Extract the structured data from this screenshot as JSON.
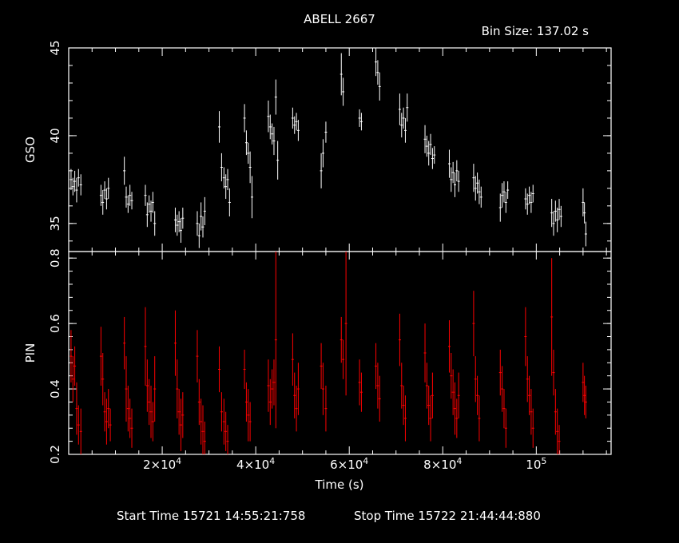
{
  "title": "ABELL 2667",
  "bin_size": "Bin Size: 137.02 s",
  "x_axis_label": "Time (s)",
  "start_time": "Start Time 15721 14:55:21:758",
  "stop_time": "Stop Time 15722 21:44:44:880",
  "colors": {
    "background": "#000000",
    "axes": "#ffffff",
    "gso_series": "#ffffff",
    "pin_series": "#ff0000"
  },
  "chart_data": [
    {
      "type": "scatter",
      "name": "gso_panel",
      "ylabel": "GSO",
      "xlim": [
        0,
        116000
      ],
      "ylim": [
        33.4,
        45
      ],
      "y_ticks": [
        35,
        40,
        45
      ],
      "x_tick_values": [
        20000,
        40000,
        60000,
        80000,
        100000
      ],
      "tick_labels": [
        "35",
        "40",
        "45"
      ],
      "points": [
        [
          500,
          37.5,
          0.6
        ],
        [
          900,
          37.1,
          0.5
        ],
        [
          1300,
          37.4,
          0.6
        ],
        [
          1700,
          36.9,
          0.7
        ],
        [
          2100,
          37.6,
          0.5
        ],
        [
          2600,
          37.2,
          0.6
        ],
        [
          6900,
          36.6,
          0.6
        ],
        [
          7300,
          36.2,
          0.7
        ],
        [
          7700,
          36.9,
          0.5
        ],
        [
          8100,
          36.4,
          0.6
        ],
        [
          8500,
          37.0,
          0.6
        ],
        [
          11900,
          38.0,
          0.8
        ],
        [
          12300,
          36.5,
          0.6
        ],
        [
          12700,
          36.1,
          0.5
        ],
        [
          13100,
          36.6,
          0.6
        ],
        [
          13500,
          36.3,
          0.5
        ],
        [
          16400,
          36.6,
          0.6
        ],
        [
          16800,
          35.5,
          0.7
        ],
        [
          17200,
          36.1,
          0.5
        ],
        [
          17600,
          35.7,
          0.6
        ],
        [
          18000,
          36.2,
          0.6
        ],
        [
          18400,
          35.0,
          0.7
        ],
        [
          22800,
          35.2,
          0.7
        ],
        [
          23200,
          34.9,
          0.6
        ],
        [
          23600,
          35.1,
          0.6
        ],
        [
          24000,
          34.6,
          0.7
        ],
        [
          24400,
          35.3,
          0.6
        ],
        [
          27500,
          35.0,
          0.7
        ],
        [
          27900,
          34.3,
          0.7
        ],
        [
          28300,
          35.4,
          0.8
        ],
        [
          28700,
          34.8,
          0.6
        ],
        [
          29100,
          35.7,
          0.8
        ],
        [
          32200,
          40.5,
          0.9
        ],
        [
          32700,
          38.2,
          0.8
        ],
        [
          33200,
          37.6,
          0.6
        ],
        [
          33600,
          37.1,
          0.7
        ],
        [
          34000,
          37.5,
          0.6
        ],
        [
          34400,
          36.2,
          0.8
        ],
        [
          37600,
          41.0,
          0.8
        ],
        [
          38000,
          39.6,
          0.7
        ],
        [
          38400,
          39.0,
          0.6
        ],
        [
          38800,
          38.2,
          0.9
        ],
        [
          39200,
          36.5,
          1.2
        ],
        [
          42700,
          41.1,
          0.9
        ],
        [
          43100,
          40.5,
          0.7
        ],
        [
          43500,
          40.1,
          0.6
        ],
        [
          43900,
          39.7,
          0.8
        ],
        [
          44300,
          42.2,
          1.0
        ],
        [
          44700,
          38.6,
          1.1
        ],
        [
          47900,
          41.0,
          0.6
        ],
        [
          48300,
          40.6,
          0.5
        ],
        [
          48700,
          40.8,
          0.5
        ],
        [
          49100,
          40.3,
          0.6
        ],
        [
          54000,
          38.0,
          1.0
        ],
        [
          54400,
          39.0,
          0.8
        ],
        [
          55000,
          40.2,
          0.6
        ],
        [
          58300,
          43.5,
          1.2
        ],
        [
          58700,
          42.5,
          0.8
        ],
        [
          62200,
          41.0,
          0.5
        ],
        [
          62600,
          40.8,
          0.5
        ],
        [
          65700,
          44.2,
          0.8
        ],
        [
          66100,
          43.6,
          0.7
        ],
        [
          66500,
          42.8,
          0.8
        ],
        [
          70800,
          41.5,
          0.9
        ],
        [
          71200,
          40.6,
          0.7
        ],
        [
          71600,
          41.0,
          0.6
        ],
        [
          72000,
          40.3,
          0.7
        ],
        [
          72400,
          41.6,
          0.8
        ],
        [
          76200,
          39.8,
          0.8
        ],
        [
          76600,
          39.4,
          0.6
        ],
        [
          77000,
          39.0,
          0.7
        ],
        [
          77400,
          39.5,
          0.6
        ],
        [
          77800,
          38.7,
          0.6
        ],
        [
          78200,
          38.9,
          0.5
        ],
        [
          81400,
          38.4,
          0.8
        ],
        [
          81800,
          37.5,
          0.7
        ],
        [
          82200,
          37.9,
          0.6
        ],
        [
          82600,
          37.2,
          0.7
        ],
        [
          83000,
          38.0,
          0.6
        ],
        [
          83400,
          37.4,
          0.6
        ],
        [
          86600,
          37.6,
          0.8
        ],
        [
          87000,
          37.0,
          0.7
        ],
        [
          87400,
          37.3,
          0.6
        ],
        [
          87800,
          36.8,
          0.7
        ],
        [
          88200,
          36.5,
          0.6
        ],
        [
          92300,
          35.9,
          0.8
        ],
        [
          92700,
          36.6,
          0.7
        ],
        [
          93100,
          36.8,
          0.6
        ],
        [
          93500,
          36.2,
          0.6
        ],
        [
          93900,
          36.9,
          0.5
        ],
        [
          97700,
          36.4,
          0.6
        ],
        [
          98100,
          36.1,
          0.6
        ],
        [
          98500,
          36.6,
          0.5
        ],
        [
          98900,
          36.2,
          0.6
        ],
        [
          99300,
          36.7,
          0.5
        ],
        [
          103300,
          35.6,
          0.8
        ],
        [
          103700,
          35.0,
          0.7
        ],
        [
          104100,
          35.7,
          0.6
        ],
        [
          104500,
          35.2,
          0.7
        ],
        [
          104900,
          35.8,
          0.6
        ],
        [
          105300,
          35.4,
          0.6
        ],
        [
          110000,
          36.2,
          0.8
        ],
        [
          110300,
          35.6,
          0.6
        ],
        [
          110600,
          34.4,
          0.7
        ]
      ]
    },
    {
      "type": "scatter",
      "name": "pin_panel",
      "ylabel": "PIN",
      "xlim": [
        0,
        116000
      ],
      "ylim": [
        0.2,
        0.82
      ],
      "y_ticks": [
        0.2,
        0.4,
        0.6,
        0.8
      ],
      "x_tick_values": [
        20000,
        40000,
        60000,
        80000,
        100000
      ],
      "tick_labels": [
        "0.2",
        "0.4",
        "0.6",
        "0.8"
      ],
      "x_tick_labels": [
        {
          "mant": "2×10",
          "exp": "4"
        },
        {
          "mant": "4×10",
          "exp": "4"
        },
        {
          "mant": "6×10",
          "exp": "4"
        },
        {
          "mant": "8×10",
          "exp": "4"
        },
        {
          "mant": "10",
          "exp": "5"
        }
      ],
      "points": [
        [
          500,
          0.5,
          0.08
        ],
        [
          900,
          0.43,
          0.07
        ],
        [
          1300,
          0.47,
          0.06
        ],
        [
          1700,
          0.34,
          0.08
        ],
        [
          2100,
          0.29,
          0.06
        ],
        [
          2600,
          0.27,
          0.07
        ],
        [
          6900,
          0.5,
          0.09
        ],
        [
          7300,
          0.43,
          0.08
        ],
        [
          7700,
          0.33,
          0.06
        ],
        [
          8100,
          0.3,
          0.07
        ],
        [
          8500,
          0.34,
          0.06
        ],
        [
          8900,
          0.29,
          0.05
        ],
        [
          11900,
          0.54,
          0.08
        ],
        [
          12300,
          0.4,
          0.1
        ],
        [
          12700,
          0.34,
          0.07
        ],
        [
          13100,
          0.31,
          0.06
        ],
        [
          13500,
          0.28,
          0.06
        ],
        [
          16400,
          0.53,
          0.12
        ],
        [
          16800,
          0.41,
          0.08
        ],
        [
          17200,
          0.36,
          0.07
        ],
        [
          17600,
          0.33,
          0.08
        ],
        [
          18000,
          0.3,
          0.06
        ],
        [
          18400,
          0.4,
          0.1
        ],
        [
          22800,
          0.54,
          0.1
        ],
        [
          23200,
          0.4,
          0.09
        ],
        [
          23600,
          0.33,
          0.07
        ],
        [
          24000,
          0.29,
          0.08
        ],
        [
          24400,
          0.32,
          0.07
        ],
        [
          27500,
          0.5,
          0.08
        ],
        [
          27900,
          0.36,
          0.07
        ],
        [
          28300,
          0.3,
          0.07
        ],
        [
          28700,
          0.27,
          0.08
        ],
        [
          29100,
          0.24,
          0.06
        ],
        [
          32200,
          0.46,
          0.07
        ],
        [
          32700,
          0.33,
          0.06
        ],
        [
          33200,
          0.3,
          0.07
        ],
        [
          33600,
          0.27,
          0.06
        ],
        [
          34000,
          0.24,
          0.05
        ],
        [
          37600,
          0.46,
          0.06
        ],
        [
          38000,
          0.36,
          0.06
        ],
        [
          38400,
          0.32,
          0.08
        ],
        [
          38800,
          0.3,
          0.06
        ],
        [
          42700,
          0.41,
          0.08
        ],
        [
          43100,
          0.36,
          0.07
        ],
        [
          43500,
          0.4,
          0.06
        ],
        [
          43900,
          0.42,
          0.07
        ],
        [
          44300,
          0.55,
          0.27
        ],
        [
          47900,
          0.49,
          0.08
        ],
        [
          48300,
          0.38,
          0.07
        ],
        [
          48700,
          0.34,
          0.07
        ],
        [
          49100,
          0.4,
          0.08
        ],
        [
          54000,
          0.47,
          0.07
        ],
        [
          54400,
          0.4,
          0.08
        ],
        [
          55000,
          0.34,
          0.07
        ],
        [
          58300,
          0.55,
          0.07
        ],
        [
          58700,
          0.49,
          0.06
        ],
        [
          59300,
          0.6,
          0.22
        ],
        [
          62200,
          0.42,
          0.07
        ],
        [
          62600,
          0.39,
          0.06
        ],
        [
          65700,
          0.47,
          0.07
        ],
        [
          66100,
          0.41,
          0.07
        ],
        [
          66500,
          0.37,
          0.07
        ],
        [
          70800,
          0.55,
          0.08
        ],
        [
          71200,
          0.41,
          0.07
        ],
        [
          71600,
          0.35,
          0.06
        ],
        [
          72000,
          0.31,
          0.07
        ],
        [
          76200,
          0.51,
          0.09
        ],
        [
          76600,
          0.41,
          0.07
        ],
        [
          77000,
          0.35,
          0.06
        ],
        [
          77400,
          0.31,
          0.07
        ],
        [
          77800,
          0.38,
          0.07
        ],
        [
          81400,
          0.53,
          0.08
        ],
        [
          81800,
          0.44,
          0.07
        ],
        [
          82200,
          0.39,
          0.07
        ],
        [
          82600,
          0.34,
          0.08
        ],
        [
          83000,
          0.31,
          0.06
        ],
        [
          83400,
          0.38,
          0.07
        ],
        [
          86600,
          0.6,
          0.1
        ],
        [
          87000,
          0.43,
          0.07
        ],
        [
          87400,
          0.38,
          0.06
        ],
        [
          87800,
          0.31,
          0.07
        ],
        [
          92300,
          0.45,
          0.07
        ],
        [
          92700,
          0.4,
          0.07
        ],
        [
          93100,
          0.34,
          0.06
        ],
        [
          93500,
          0.28,
          0.06
        ],
        [
          97700,
          0.56,
          0.09
        ],
        [
          98100,
          0.43,
          0.07
        ],
        [
          98500,
          0.38,
          0.06
        ],
        [
          98900,
          0.33,
          0.07
        ],
        [
          99300,
          0.28,
          0.06
        ],
        [
          103300,
          0.62,
          0.18
        ],
        [
          103700,
          0.45,
          0.07
        ],
        [
          104100,
          0.33,
          0.07
        ],
        [
          104500,
          0.27,
          0.07
        ],
        [
          104900,
          0.24,
          0.05
        ],
        [
          110000,
          0.42,
          0.06
        ],
        [
          110300,
          0.38,
          0.06
        ],
        [
          110600,
          0.36,
          0.05
        ]
      ]
    }
  ]
}
